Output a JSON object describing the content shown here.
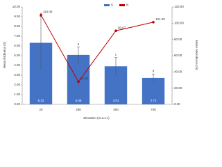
{
  "chart_data": {
    "type": "bar_line",
    "xlabel": "Elevation (m.a.s.l.)",
    "ylabel": "Mean Richness (S)",
    "y2label": "Mean Abundance (N)",
    "categories": [
      "20",
      "200",
      "400",
      "700"
    ],
    "series": [
      {
        "name": "S",
        "color": "#4472c4",
        "values": [
          6.32,
          5.08,
          3.91,
          2.72
        ],
        "errors": [
          2.7,
          0.8,
          0.9,
          0.4
        ],
        "letters": [
          "a",
          "b",
          "c",
          "d"
        ]
      },
      {
        "name": "N",
        "color": "#c00000",
        "axis": "y2",
        "values": [
          110.09,
          27.87,
          90.67,
          101.25
        ]
      }
    ],
    "ylim": [
      0,
      10
    ],
    "yticks": [
      {
        "value": 0,
        "label": "0.00"
      },
      {
        "value": 1,
        "label": "1.00"
      },
      {
        "value": 2,
        "label": "2.00"
      },
      {
        "value": 3,
        "label": "3.00"
      },
      {
        "value": 4,
        "label": "4.00"
      },
      {
        "value": 5,
        "label": "5.00"
      },
      {
        "value": 6,
        "label": "6.00"
      },
      {
        "value": 7,
        "label": "7.00"
      },
      {
        "value": 8,
        "label": "8.00"
      },
      {
        "value": 9,
        "label": "9.00"
      },
      {
        "value": 10,
        "label": "10.00"
      }
    ],
    "y2lim": [
      0,
      120
    ],
    "y2ticks": [
      {
        "value": 0,
        "label": "0.00"
      },
      {
        "value": 20,
        "label": "20.00"
      },
      {
        "value": 40,
        "label": "40.00"
      },
      {
        "value": 60,
        "label": "60.00"
      },
      {
        "value": 80,
        "label": "80.00"
      },
      {
        "value": 100,
        "label": "100.00"
      },
      {
        "value": 120,
        "label": "120.00"
      }
    ]
  }
}
